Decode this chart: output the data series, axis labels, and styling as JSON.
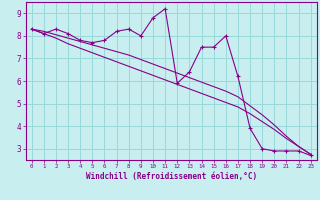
{
  "xlabel": "Windchill (Refroidissement éolien,°C)",
  "bg_color": "#c8eef0",
  "line_color": "#880088",
  "grid_color": "#99d9d9",
  "x_data": [
    0,
    1,
    2,
    3,
    4,
    5,
    6,
    7,
    8,
    9,
    10,
    11,
    12,
    13,
    14,
    15,
    16,
    17,
    18,
    19,
    20,
    21,
    22,
    23
  ],
  "y_jagged": [
    8.3,
    8.1,
    8.3,
    8.1,
    7.8,
    7.7,
    7.8,
    8.2,
    8.3,
    8.0,
    8.8,
    9.2,
    5.9,
    6.4,
    7.5,
    7.5,
    8.0,
    6.2,
    3.9,
    3.0,
    2.9,
    2.9,
    2.9,
    2.7
  ],
  "y_line1": [
    8.3,
    8.1,
    7.9,
    7.65,
    7.45,
    7.25,
    7.05,
    6.85,
    6.65,
    6.45,
    6.25,
    6.05,
    5.85,
    5.65,
    5.45,
    5.25,
    5.05,
    4.85,
    4.55,
    4.2,
    3.85,
    3.45,
    3.1,
    2.75
  ],
  "y_line2": [
    8.3,
    8.2,
    8.05,
    7.9,
    7.75,
    7.6,
    7.45,
    7.3,
    7.15,
    6.95,
    6.75,
    6.55,
    6.35,
    6.15,
    5.95,
    5.75,
    5.55,
    5.3,
    4.9,
    4.5,
    4.05,
    3.55,
    3.1,
    2.75
  ],
  "ylim": [
    2.5,
    9.5
  ],
  "xlim": [
    -0.5,
    23.5
  ],
  "yticks": [
    3,
    4,
    5,
    6,
    7,
    8,
    9
  ],
  "xticks": [
    0,
    1,
    2,
    3,
    4,
    5,
    6,
    7,
    8,
    9,
    10,
    11,
    12,
    13,
    14,
    15,
    16,
    17,
    18,
    19,
    20,
    21,
    22,
    23
  ]
}
